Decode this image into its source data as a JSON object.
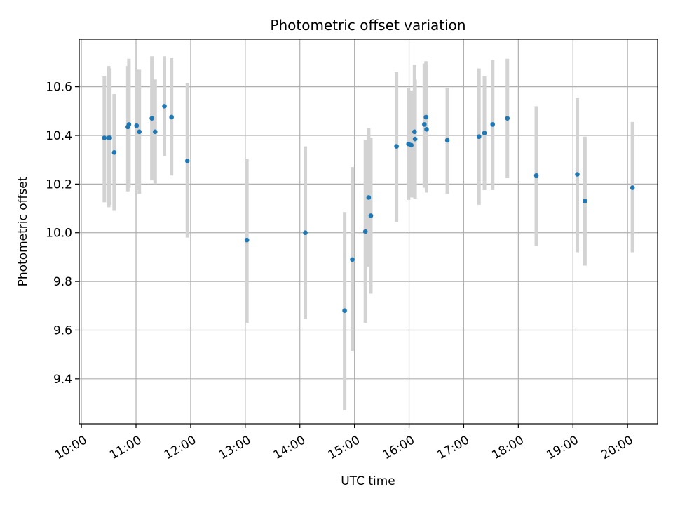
{
  "chart_data": {
    "type": "scatter",
    "title": "Photometric offset variation",
    "xlabel": "UTC time",
    "ylabel": "Photometric offset",
    "x_unit": "hours UTC",
    "xlim": [
      9.96,
      20.55
    ],
    "ylim": [
      9.215,
      10.795
    ],
    "grid": true,
    "x_ticks": [
      10,
      11,
      12,
      13,
      14,
      15,
      16,
      17,
      18,
      19,
      20
    ],
    "x_tick_labels": [
      "10:00",
      "11:00",
      "12:00",
      "13:00",
      "14:00",
      "15:00",
      "16:00",
      "17:00",
      "18:00",
      "19:00",
      "20:00"
    ],
    "y_ticks": [
      9.4,
      9.6,
      9.8,
      10.0,
      10.2,
      10.4,
      10.6
    ],
    "y_tick_labels": [
      "9.4",
      "9.6",
      "9.8",
      "10.0",
      "10.2",
      "10.4",
      "10.6"
    ],
    "marker_color": "#1f77b4",
    "errorbar_color": "#d3d3d3",
    "points": [
      {
        "x": 10.42,
        "y": 10.39,
        "lo": 10.125,
        "hi": 10.645
      },
      {
        "x": 10.5,
        "y": 10.39,
        "lo": 10.105,
        "hi": 10.685
      },
      {
        "x": 10.52,
        "y": 10.39,
        "lo": 10.115,
        "hi": 10.675
      },
      {
        "x": 10.6,
        "y": 10.33,
        "lo": 10.09,
        "hi": 10.57
      },
      {
        "x": 10.85,
        "y": 10.435,
        "lo": 10.17,
        "hi": 10.685
      },
      {
        "x": 10.87,
        "y": 10.445,
        "lo": 10.185,
        "hi": 10.715
      },
      {
        "x": 11.01,
        "y": 10.44,
        "lo": 10.175,
        "hi": 10.67
      },
      {
        "x": 11.06,
        "y": 10.415,
        "lo": 10.16,
        "hi": 10.67
      },
      {
        "x": 11.29,
        "y": 10.47,
        "lo": 10.215,
        "hi": 10.725
      },
      {
        "x": 11.35,
        "y": 10.415,
        "lo": 10.2,
        "hi": 10.63
      },
      {
        "x": 11.52,
        "y": 10.52,
        "lo": 10.315,
        "hi": 10.725
      },
      {
        "x": 11.65,
        "y": 10.475,
        "lo": 10.235,
        "hi": 10.72
      },
      {
        "x": 11.94,
        "y": 10.295,
        "lo": 9.98,
        "hi": 10.615
      },
      {
        "x": 13.03,
        "y": 9.97,
        "lo": 9.63,
        "hi": 10.305
      },
      {
        "x": 14.1,
        "y": 10.0,
        "lo": 9.645,
        "hi": 10.355
      },
      {
        "x": 14.82,
        "y": 9.68,
        "lo": 9.27,
        "hi": 10.085
      },
      {
        "x": 14.96,
        "y": 9.89,
        "lo": 9.515,
        "hi": 10.27
      },
      {
        "x": 15.2,
        "y": 10.005,
        "lo": 9.63,
        "hi": 10.38
      },
      {
        "x": 15.26,
        "y": 10.145,
        "lo": 9.86,
        "hi": 10.43
      },
      {
        "x": 15.3,
        "y": 10.07,
        "lo": 9.75,
        "hi": 10.39
      },
      {
        "x": 15.77,
        "y": 10.355,
        "lo": 10.045,
        "hi": 10.66
      },
      {
        "x": 15.99,
        "y": 10.365,
        "lo": 10.135,
        "hi": 10.595
      },
      {
        "x": 16.04,
        "y": 10.36,
        "lo": 10.145,
        "hi": 10.585
      },
      {
        "x": 16.1,
        "y": 10.415,
        "lo": 10.145,
        "hi": 10.69
      },
      {
        "x": 16.11,
        "y": 10.385,
        "lo": 10.14,
        "hi": 10.63
      },
      {
        "x": 16.28,
        "y": 10.445,
        "lo": 10.185,
        "hi": 10.695
      },
      {
        "x": 16.31,
        "y": 10.475,
        "lo": 10.245,
        "hi": 10.705
      },
      {
        "x": 16.32,
        "y": 10.425,
        "lo": 10.165,
        "hi": 10.69
      },
      {
        "x": 16.7,
        "y": 10.38,
        "lo": 10.16,
        "hi": 10.595
      },
      {
        "x": 17.28,
        "y": 10.395,
        "lo": 10.115,
        "hi": 10.675
      },
      {
        "x": 17.38,
        "y": 10.41,
        "lo": 10.175,
        "hi": 10.645
      },
      {
        "x": 17.53,
        "y": 10.445,
        "lo": 10.175,
        "hi": 10.71
      },
      {
        "x": 17.8,
        "y": 10.47,
        "lo": 10.225,
        "hi": 10.715
      },
      {
        "x": 18.33,
        "y": 10.235,
        "lo": 9.945,
        "hi": 10.52
      },
      {
        "x": 19.08,
        "y": 10.24,
        "lo": 9.92,
        "hi": 10.555
      },
      {
        "x": 19.22,
        "y": 10.13,
        "lo": 9.865,
        "hi": 10.395
      },
      {
        "x": 20.09,
        "y": 10.185,
        "lo": 9.92,
        "hi": 10.455
      }
    ]
  }
}
